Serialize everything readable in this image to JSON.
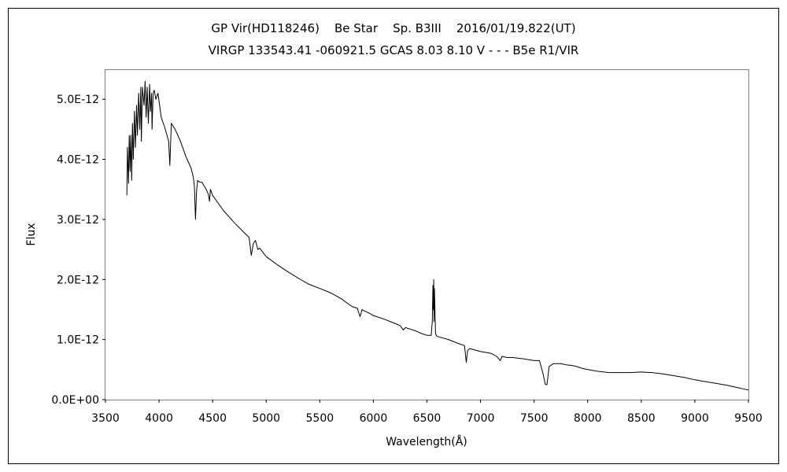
{
  "chart_data": {
    "type": "line",
    "title": "GP Vir(HD118246)    Be Star    Sp. B3III    2016/01/19.822(UT)",
    "subtitle": "VIRGP 133543.41 -060921.5 GCAS 8.03 8.10 V - - - B5e R1/VIR",
    "xlabel": "Wavelength(Å)",
    "ylabel": "Flux",
    "xlim": [
      3500,
      9500
    ],
    "ylim": [
      0,
      5.5e-12
    ],
    "x_ticks": [
      3500,
      4000,
      4500,
      5000,
      5500,
      6000,
      6500,
      7000,
      7500,
      8000,
      8500,
      9000,
      9500
    ],
    "x_tick_labels": [
      "3500",
      "4000",
      "4500",
      "5000",
      "5500",
      "6000",
      "6500",
      "7000",
      "7500",
      "8000",
      "8500",
      "9000",
      "9500"
    ],
    "y_ticks": [
      0,
      1e-12,
      2e-12,
      3e-12,
      4e-12,
      5e-12
    ],
    "y_tick_labels": [
      "0.0E+00",
      "1.0E-12",
      "2.0E-12",
      "3.0E-12",
      "4.0E-12",
      "5.0E-12"
    ],
    "grid": false,
    "series": [
      {
        "color": "#000000",
        "x": [
          3700,
          3705,
          3715,
          3722,
          3730,
          3736,
          3745,
          3752,
          3760,
          3770,
          3780,
          3790,
          3798,
          3810,
          3820,
          3830,
          3835,
          3845,
          3860,
          3870,
          3880,
          3889,
          3900,
          3912,
          3920,
          3930,
          3935,
          3945,
          3955,
          3970,
          3990,
          4005,
          4020,
          4050,
          4090,
          4101,
          4115,
          4150,
          4200,
          4250,
          4300,
          4320,
          4330,
          4340,
          4350,
          4360,
          4380,
          4400,
          4440,
          4460,
          4471,
          4480,
          4500,
          4600,
          4700,
          4800,
          4840,
          4861,
          4880,
          4900,
          4922,
          4940,
          5000,
          5100,
          5200,
          5300,
          5400,
          5500,
          5600,
          5700,
          5800,
          5850,
          5876,
          5895,
          5900,
          5950,
          6000,
          6100,
          6200,
          6250,
          6280,
          6300,
          6350,
          6400,
          6450,
          6500,
          6540,
          6550,
          6556,
          6560,
          6563,
          6566,
          6570,
          6580,
          6590,
          6600,
          6700,
          6800,
          6850,
          6867,
          6880,
          6900,
          7000,
          7100,
          7150,
          7185,
          7200,
          7250,
          7300,
          7400,
          7500,
          7550,
          7580,
          7605,
          7620,
          7640,
          7680,
          7700,
          7750,
          7800,
          7850,
          7900,
          7950,
          8000,
          8100,
          8200,
          8300,
          8400,
          8500,
          8600,
          8700,
          8800,
          8900,
          9000,
          9100,
          9200,
          9300,
          9400,
          9450,
          9500
        ],
        "y": [
          3.4e-12,
          4.2e-12,
          3.6e-12,
          4.4e-12,
          3.8e-12,
          4.4e-12,
          3.65e-12,
          4.6e-12,
          4e-12,
          4.8e-12,
          4.2e-12,
          4.9e-12,
          4.4e-12,
          5.1e-12,
          4.5e-12,
          5.2e-12,
          4.3e-12,
          5.2e-12,
          4.9e-12,
          5.3e-12,
          4.7e-12,
          5.2e-12,
          4.6e-12,
          5.25e-12,
          4.8e-12,
          5.1e-12,
          4.5e-12,
          5.1e-12,
          5.15e-12,
          5e-12,
          5.1e-12,
          4.9e-12,
          4.7e-12,
          4.55e-12,
          4.3e-12,
          3.9e-12,
          4.6e-12,
          4.5e-12,
          4.3e-12,
          4.05e-12,
          3.85e-12,
          3.7e-12,
          3.55e-12,
          3e-12,
          3.45e-12,
          3.65e-12,
          3.62e-12,
          3.62e-12,
          3.5e-12,
          3.42e-12,
          3.3e-12,
          3.5e-12,
          3.4e-12,
          3.15e-12,
          2.95e-12,
          2.77e-12,
          2.7e-12,
          2.4e-12,
          2.6e-12,
          2.65e-12,
          2.5e-12,
          2.52e-12,
          2.38e-12,
          2.25e-12,
          2.13e-12,
          2.02e-12,
          1.92e-12,
          1.85e-12,
          1.78e-12,
          1.68e-12,
          1.55e-12,
          1.52e-12,
          1.38e-12,
          1.5e-12,
          1.49e-12,
          1.45e-12,
          1.4e-12,
          1.34e-12,
          1.27e-12,
          1.23e-12,
          1.16e-12,
          1.2e-12,
          1.17e-12,
          1.14e-12,
          1.1e-12,
          1.07e-12,
          1.07e-12,
          1.3e-12,
          1.9e-12,
          1.5e-12,
          2e-12,
          1.3e-12,
          1.85e-12,
          1.1e-12,
          1.06e-12,
          1.05e-12,
          1e-12,
          9.3e-13,
          9e-13,
          6.2e-13,
          8.2e-13,
          8.5e-13,
          8e-13,
          7.7e-13,
          7.2e-13,
          6.5e-13,
          7.2e-13,
          7e-13,
          7e-13,
          6.8e-13,
          6.5e-13,
          6.5e-13,
          4.5e-13,
          2.5e-13,
          2.5e-13,
          5.5e-13,
          6e-13,
          6e-13,
          6e-13,
          5.8e-13,
          5.7e-13,
          5.5e-13,
          5.2e-13,
          5e-13,
          4.7e-13,
          4.5e-13,
          4.5e-13,
          4.5e-13,
          4.6e-13,
          4.5e-13,
          4.3e-13,
          4e-13,
          3.7e-13,
          3.3e-13,
          3e-13,
          2.7e-13,
          2.4e-13,
          2e-13,
          1.8e-13,
          1.6e-13
        ]
      }
    ]
  }
}
